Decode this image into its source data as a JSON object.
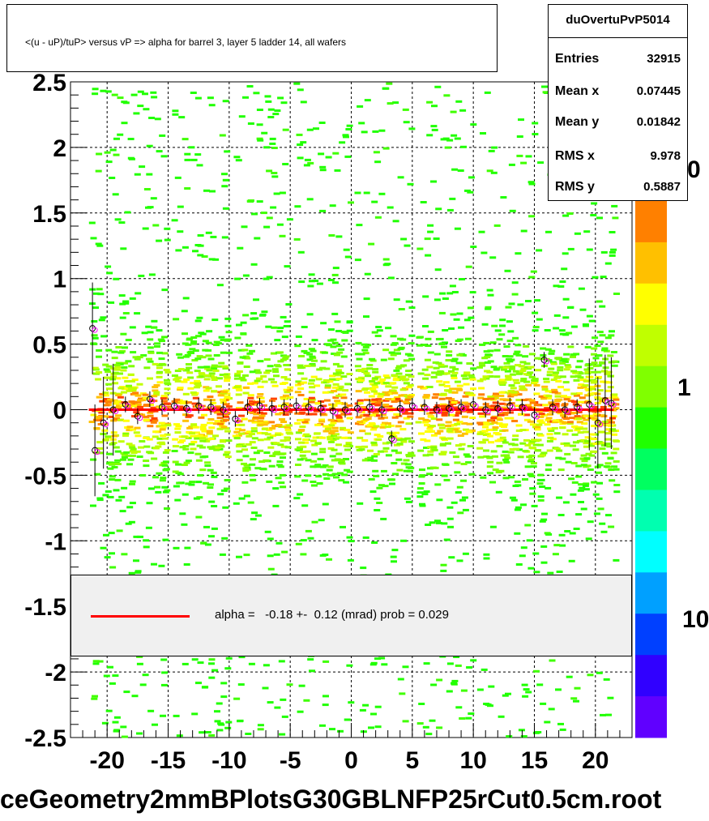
{
  "chart_data": {
    "type": "heatmap",
    "title": "<(u - uP)/tuP> versus   vP => alpha for barrel 3, layer 5 ladder 14, all wafers",
    "xlim": [
      -23,
      23
    ],
    "ylim": [
      -2.5,
      2.5
    ],
    "x_ticks": [
      "-20",
      "-15",
      "-10",
      "-5",
      "0",
      "5",
      "10",
      "15",
      "20"
    ],
    "x_tick_values": [
      -20,
      -15,
      -10,
      -5,
      0,
      5,
      10,
      15,
      20
    ],
    "y_ticks": [
      "2.5",
      "2",
      "1.5",
      "1",
      "0.5",
      "0",
      "-0.5",
      "-1",
      "-1.5",
      "-2",
      "-2.5"
    ],
    "y_tick_values": [
      2.5,
      2,
      1.5,
      1,
      0.5,
      0,
      -0.5,
      -1,
      -1.5,
      -2,
      -2.5
    ],
    "grid": true,
    "fit": {
      "label": "alpha =   -0.18 +-  0.12 (mrad) prob = 0.029",
      "intercept": 0.0,
      "slope": 0.0,
      "color": "#ff0000"
    },
    "profile_points": [
      {
        "x": -21.2,
        "y": 0.62
      },
      {
        "x": -21.0,
        "y": -0.31
      },
      {
        "x": -20.3,
        "y": -0.1
      },
      {
        "x": -19.5,
        "y": 0.0
      },
      {
        "x": -18.5,
        "y": 0.04
      },
      {
        "x": -17.5,
        "y": -0.05
      },
      {
        "x": -16.5,
        "y": 0.08
      },
      {
        "x": -15.5,
        "y": 0.02
      },
      {
        "x": -14.5,
        "y": 0.03
      },
      {
        "x": -13.5,
        "y": 0.01
      },
      {
        "x": -12.5,
        "y": 0.03
      },
      {
        "x": -11.5,
        "y": 0.02
      },
      {
        "x": -10.5,
        "y": 0.0
      },
      {
        "x": -9.5,
        "y": -0.07
      },
      {
        "x": -8.5,
        "y": 0.02
      },
      {
        "x": -7.5,
        "y": 0.03
      },
      {
        "x": -6.5,
        "y": 0.01
      },
      {
        "x": -5.5,
        "y": 0.02
      },
      {
        "x": -4.5,
        "y": 0.03
      },
      {
        "x": -3.5,
        "y": 0.02
      },
      {
        "x": -2.5,
        "y": 0.01
      },
      {
        "x": -1.5,
        "y": -0.01
      },
      {
        "x": -0.5,
        "y": 0.0
      },
      {
        "x": 0.5,
        "y": 0.01
      },
      {
        "x": 1.5,
        "y": 0.02
      },
      {
        "x": 2.5,
        "y": 0.0
      },
      {
        "x": 3.3,
        "y": -0.22
      },
      {
        "x": 4.0,
        "y": 0.01
      },
      {
        "x": 5.0,
        "y": 0.03
      },
      {
        "x": 6.0,
        "y": 0.02
      },
      {
        "x": 7.0,
        "y": 0.0
      },
      {
        "x": 8.0,
        "y": 0.01
      },
      {
        "x": 9.0,
        "y": 0.02
      },
      {
        "x": 10.0,
        "y": 0.04
      },
      {
        "x": 11.0,
        "y": 0.0
      },
      {
        "x": 12.0,
        "y": 0.01
      },
      {
        "x": 13.0,
        "y": 0.03
      },
      {
        "x": 14.0,
        "y": 0.02
      },
      {
        "x": 15.0,
        "y": -0.04
      },
      {
        "x": 15.8,
        "y": 0.38
      },
      {
        "x": 16.5,
        "y": 0.02
      },
      {
        "x": 17.5,
        "y": 0.0
      },
      {
        "x": 18.5,
        "y": 0.02
      },
      {
        "x": 19.5,
        "y": 0.04
      },
      {
        "x": 20.2,
        "y": -0.1
      },
      {
        "x": 20.8,
        "y": 0.07
      },
      {
        "x": 21.3,
        "y": 0.05
      }
    ],
    "palette_labels": [
      "0",
      "1",
      "10"
    ],
    "palette_colors": [
      "#6000ff",
      "#3000ff",
      "#0040ff",
      "#00a0ff",
      "#00ffff",
      "#00ffb0",
      "#00ff60",
      "#20ff00",
      "#80ff00",
      "#c0ff00",
      "#ffff00",
      "#ffc000",
      "#ff8000"
    ]
  },
  "stats": {
    "name": "duOvertuPvP5014",
    "rows": [
      {
        "label": "Entries",
        "value": "32915"
      },
      {
        "label": "Mean x",
        "value": "0.07445"
      },
      {
        "label": "Mean y",
        "value": "0.01842"
      },
      {
        "label": "RMS x",
        "value": "9.978"
      },
      {
        "label": "RMS y",
        "value": "0.5887"
      }
    ]
  },
  "file_name": "ceGeometry2mmBPlotsG30GBLNFP25rCut0.5cm.root"
}
